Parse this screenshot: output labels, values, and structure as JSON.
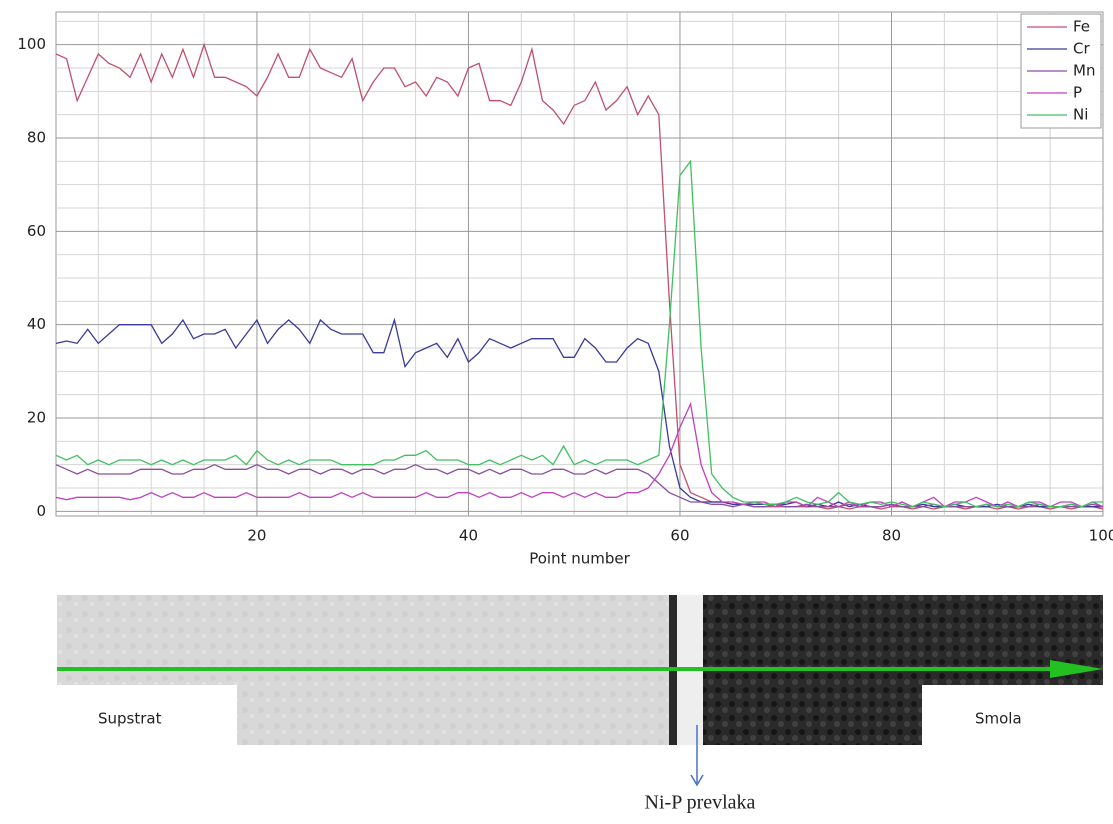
{
  "chart_data": {
    "type": "line",
    "x_label": "Point number",
    "x": [
      1,
      2,
      3,
      4,
      5,
      6,
      7,
      8,
      9,
      10,
      11,
      12,
      13,
      14,
      15,
      16,
      17,
      18,
      19,
      20,
      21,
      22,
      23,
      24,
      25,
      26,
      27,
      28,
      29,
      30,
      31,
      32,
      33,
      34,
      35,
      36,
      37,
      38,
      39,
      40,
      41,
      42,
      43,
      44,
      45,
      46,
      47,
      48,
      49,
      50,
      51,
      52,
      53,
      54,
      55,
      56,
      57,
      58,
      59,
      60,
      61,
      62,
      63,
      64,
      65,
      66,
      67,
      68,
      69,
      70,
      71,
      72,
      73,
      74,
      75,
      76,
      77,
      78,
      79,
      80,
      81,
      82,
      83,
      84,
      85,
      86,
      87,
      88,
      89,
      90,
      91,
      92,
      93,
      94,
      95,
      96,
      97,
      98,
      99,
      100
    ],
    "series": [
      {
        "name": "Fe",
        "color": "#c0506e",
        "values": [
          98,
          97,
          88,
          93,
          98,
          96,
          95,
          93,
          98,
          92,
          98,
          93,
          99,
          93,
          100,
          93,
          93,
          92,
          91,
          89,
          93,
          98,
          93,
          93,
          99,
          95,
          94,
          93,
          97,
          88,
          92,
          95,
          95,
          91,
          92,
          89,
          93,
          92,
          89,
          95,
          96,
          88,
          88,
          87,
          92,
          99,
          88,
          86,
          83,
          87,
          88,
          92,
          86,
          88,
          91,
          85,
          89,
          85,
          45,
          10,
          4,
          3,
          2,
          2,
          1.5,
          1.5,
          1,
          1,
          1,
          1,
          1,
          1,
          1,
          0.5,
          1,
          0.5,
          1,
          1,
          0.5,
          1,
          1,
          0.5,
          1,
          0.5,
          1,
          1,
          0.5,
          1,
          1,
          0.5,
          1,
          0.5,
          1,
          1,
          0.5,
          1,
          0.5,
          1,
          1,
          0.5
        ]
      },
      {
        "name": "Cr",
        "color": "#3a3a9a",
        "values": [
          36,
          36.5,
          36,
          39,
          36,
          38,
          40,
          40,
          40,
          40,
          36,
          38,
          41,
          37,
          38,
          38,
          39,
          35,
          38,
          41,
          36,
          39,
          41,
          39,
          36,
          41,
          39,
          38,
          38,
          38,
          34,
          34,
          41,
          31,
          34,
          35,
          36,
          33,
          37,
          32,
          34,
          37,
          36,
          35,
          36,
          37,
          37,
          37,
          33,
          33,
          37,
          35,
          32,
          32,
          35,
          37,
          36,
          30,
          14,
          5,
          3,
          2,
          2,
          2,
          1.5,
          1.5,
          1.5,
          1.5,
          1.5,
          1.5,
          2,
          1,
          1.5,
          1,
          2,
          1,
          1.5,
          1,
          1,
          1.5,
          1,
          1,
          1.5,
          1,
          1,
          1.5,
          1,
          1,
          1,
          1.5,
          1,
          1,
          1.5,
          1,
          1,
          1,
          1.5,
          1,
          1,
          1
        ]
      },
      {
        "name": "Mn",
        "color": "#8a4fa0",
        "values": [
          10,
          9,
          8,
          9,
          8,
          8,
          8,
          8,
          9,
          9,
          9,
          8,
          8,
          9,
          9,
          10,
          9,
          9,
          9,
          10,
          9,
          9,
          8,
          9,
          9,
          8,
          9,
          9,
          8,
          9,
          9,
          8,
          9,
          9,
          10,
          9,
          9,
          8,
          9,
          9,
          8,
          9,
          8,
          9,
          9,
          8,
          8,
          9,
          9,
          8,
          8,
          9,
          8,
          9,
          9,
          9,
          8,
          6,
          4,
          3,
          2,
          2,
          1.5,
          1.5,
          1,
          1.5,
          1,
          1,
          1.5,
          1,
          1,
          1.5,
          1,
          1,
          1,
          1.5,
          1,
          1,
          1,
          1.5,
          1,
          1,
          1,
          1.5,
          1,
          1,
          1,
          1,
          1.5,
          1,
          1,
          1,
          1,
          1.5,
          1,
          1,
          1,
          1,
          1.5,
          1
        ]
      },
      {
        "name": "P",
        "color": "#c040c0",
        "values": [
          3,
          2.5,
          3,
          3,
          3,
          3,
          3,
          2.5,
          3,
          4,
          3,
          4,
          3,
          3,
          4,
          3,
          3,
          3,
          4,
          3,
          3,
          3,
          3,
          4,
          3,
          3,
          3,
          4,
          3,
          4,
          3,
          3,
          3,
          3,
          3,
          4,
          3,
          3,
          4,
          4,
          3,
          4,
          3,
          3,
          4,
          3,
          4,
          4,
          3,
          4,
          3,
          4,
          3,
          3,
          4,
          4,
          5,
          8,
          12,
          18,
          23,
          10,
          4,
          2,
          2,
          1.5,
          2,
          2,
          1,
          2,
          2,
          1,
          3,
          2,
          1,
          2,
          1,
          2,
          2,
          1,
          2,
          1,
          2,
          3,
          1,
          2,
          2,
          3,
          2,
          1,
          2,
          1,
          2,
          2,
          1,
          2,
          2,
          1,
          2,
          1
        ]
      },
      {
        "name": "Ni",
        "color": "#40c060",
        "values": [
          12,
          11,
          12,
          10,
          11,
          10,
          11,
          11,
          11,
          10,
          11,
          10,
          11,
          10,
          11,
          11,
          11,
          12,
          10,
          13,
          11,
          10,
          11,
          10,
          11,
          11,
          11,
          10,
          10,
          10,
          10,
          11,
          11,
          12,
          12,
          13,
          11,
          11,
          11,
          10,
          10,
          11,
          10,
          11,
          12,
          11,
          12,
          10,
          14,
          10,
          11,
          10,
          11,
          11,
          11,
          10,
          11,
          12,
          40,
          72,
          75,
          35,
          8,
          5,
          3,
          2,
          2,
          1.5,
          1.5,
          2,
          3,
          2,
          1.5,
          2,
          4,
          2,
          1.5,
          2,
          1.5,
          2,
          1.5,
          1,
          2,
          1.5,
          1,
          1.5,
          2,
          1,
          1.5,
          1,
          1.5,
          1,
          2,
          1.5,
          1,
          1,
          1.5,
          1,
          2,
          2
        ]
      }
    ],
    "xlim": [
      1,
      100
    ],
    "ylim": [
      -1,
      107
    ],
    "xticks": [
      20,
      40,
      60,
      80,
      100
    ],
    "yticks": [
      0,
      20,
      40,
      60,
      80,
      100
    ],
    "x_minor_grid": [
      5,
      10,
      15,
      25,
      30,
      35,
      45,
      50,
      55,
      65,
      70,
      75,
      85,
      90,
      95
    ],
    "y_minor_grid": [
      5,
      10,
      15,
      25,
      30,
      35,
      45,
      50,
      55,
      65,
      70,
      75,
      85,
      90,
      95,
      105
    ],
    "grid": true,
    "legend": "upper right"
  },
  "micrograph": {
    "left_label": "Supstrat",
    "right_label": "Smola",
    "layer_label": "Ni-P prevlaka"
  }
}
